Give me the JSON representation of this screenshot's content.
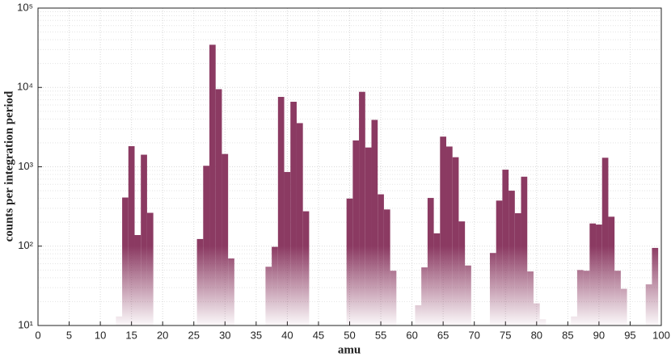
{
  "chart_data": {
    "type": "bar",
    "xlabel": "amu",
    "ylabel": "counts per integration period",
    "x": [
      10,
      11,
      13,
      14,
      15,
      16,
      17,
      18,
      26,
      27,
      28,
      29,
      30,
      31,
      37,
      38,
      39,
      40,
      41,
      42,
      43,
      50,
      51,
      52,
      53,
      54,
      55,
      56,
      57,
      61,
      62,
      63,
      64,
      65,
      66,
      67,
      68,
      69,
      73,
      74,
      75,
      76,
      77,
      78,
      79,
      80,
      81,
      86,
      87,
      88,
      89,
      90,
      91,
      92,
      93,
      94,
      98,
      99
    ],
    "values": [
      10.2,
      10.2,
      13,
      410,
      1820,
      138,
      1420,
      263,
      123,
      1030,
      34500,
      9500,
      1450,
      70,
      55,
      98,
      7600,
      860,
      6600,
      3550,
      275,
      398,
      2150,
      8800,
      1750,
      3900,
      450,
      290,
      49,
      18,
      54,
      405,
      145,
      2400,
      1800,
      1320,
      205,
      57,
      82,
      375,
      920,
      500,
      260,
      750,
      48,
      19,
      12,
      13,
      50,
      49,
      193,
      187,
      1300,
      235,
      49,
      29,
      33,
      95
    ],
    "color": "#8b3a62",
    "xlim": [
      0,
      100
    ],
    "xticks": [
      0,
      5,
      10,
      15,
      20,
      25,
      30,
      35,
      40,
      45,
      50,
      55,
      60,
      65,
      70,
      75,
      80,
      85,
      90,
      95,
      100
    ],
    "ylim": [
      10,
      100000
    ],
    "log_y": true,
    "yticks": [
      {
        "value": 10,
        "label": "10¹"
      },
      {
        "value": 100,
        "label": "10²"
      },
      {
        "value": 1000,
        "label": "10³"
      },
      {
        "value": 10000,
        "label": "10⁴"
      },
      {
        "value": 100000,
        "label": "10⁵"
      }
    ],
    "grid": true
  }
}
